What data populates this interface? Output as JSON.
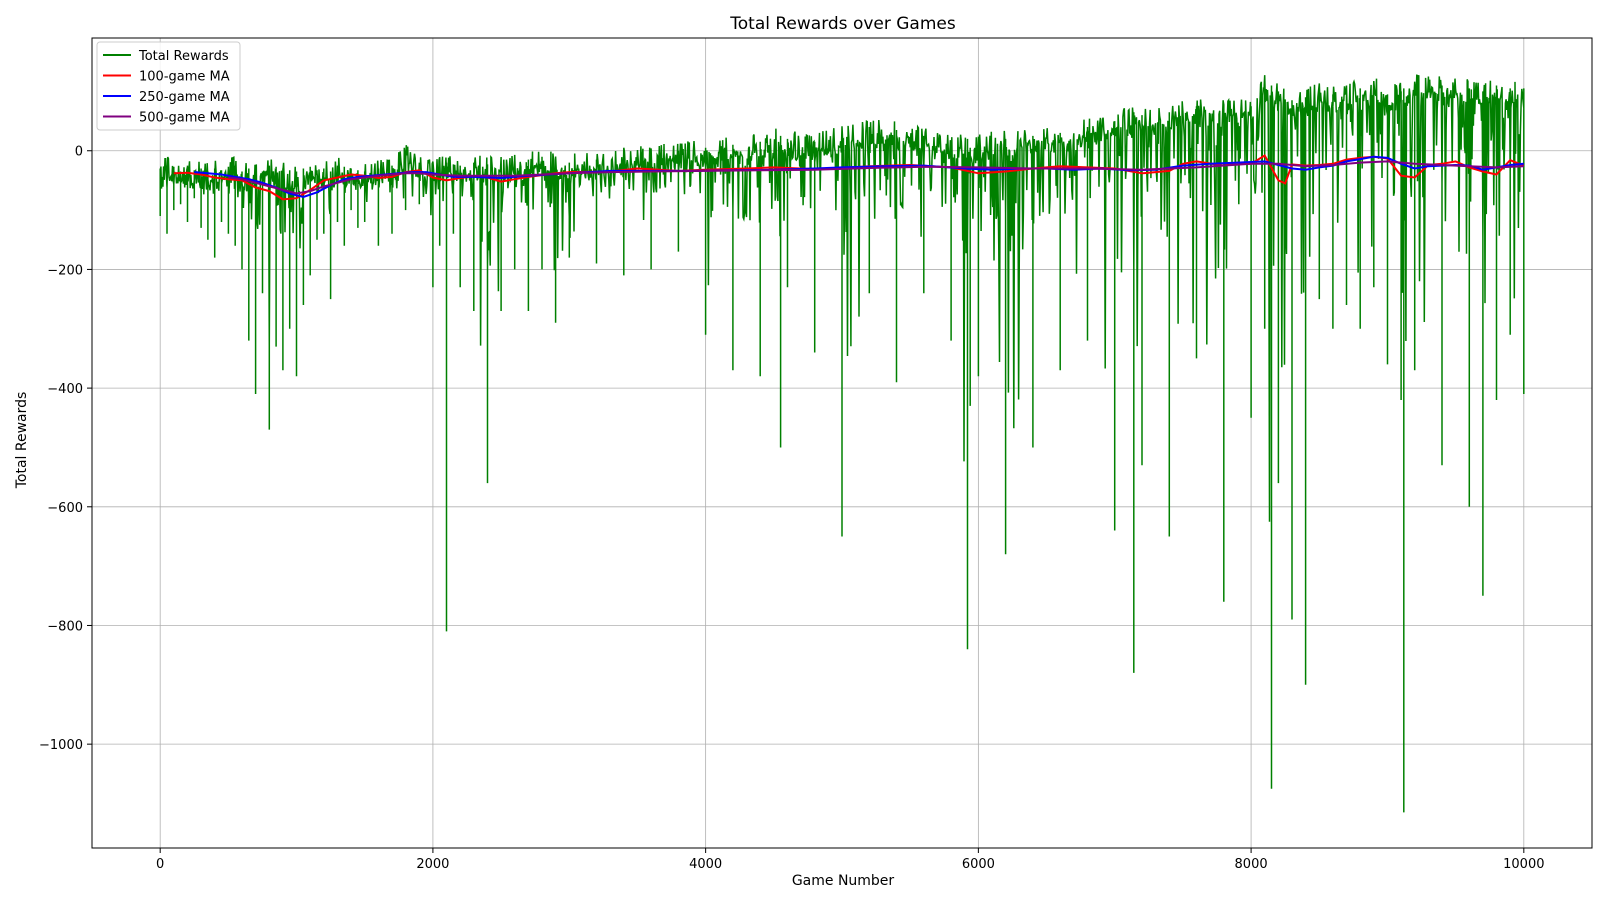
{
  "chart_data": {
    "type": "line",
    "title": "Total Rewards over Games",
    "xlabel": "Game Number",
    "ylabel": "Total Rewards",
    "xlim": [
      -500,
      10500
    ],
    "ylim": [
      -1175,
      190
    ],
    "xticks": [
      0,
      2000,
      4000,
      6000,
      8000,
      10000
    ],
    "yticks": [
      -1000,
      -800,
      -600,
      -400,
      -200,
      0
    ],
    "grid": true,
    "legend_position": "top-left",
    "series": [
      {
        "name": "Total Rewards",
        "color": "#008000",
        "note_sampling": "approximate envelope, sampled every 50 games",
        "x": [
          0,
          50,
          100,
          150,
          200,
          250,
          300,
          350,
          400,
          450,
          500,
          550,
          600,
          650,
          700,
          750,
          800,
          850,
          900,
          950,
          1000,
          1050,
          1100,
          1150,
          1200,
          1250,
          1300,
          1350,
          1400,
          1450,
          1500,
          1600,
          1700,
          1800,
          1900,
          2000,
          2050,
          2100,
          2150,
          2200,
          2300,
          2400,
          2500,
          2600,
          2700,
          2800,
          2900,
          3000,
          3200,
          3400,
          3600,
          3800,
          4000,
          4200,
          4400,
          4550,
          4600,
          4800,
          5000,
          5200,
          5400,
          5600,
          5800,
          5920,
          5940,
          6000,
          6200,
          6400,
          6600,
          6800,
          7000,
          7140,
          7200,
          7400,
          7600,
          7800,
          8000,
          8100,
          8150,
          8200,
          8300,
          8400,
          8500,
          8600,
          8700,
          8800,
          8900,
          9000,
          9100,
          9120,
          9200,
          9400,
          9600,
          9700,
          9800,
          9900,
          10000
        ],
        "min": [
          -110,
          -140,
          -100,
          -90,
          -120,
          -80,
          -130,
          -150,
          -180,
          -120,
          -140,
          -160,
          -200,
          -320,
          -410,
          -240,
          -470,
          -330,
          -370,
          -300,
          -380,
          -260,
          -210,
          -150,
          -140,
          -250,
          -120,
          -160,
          -100,
          -130,
          -120,
          -160,
          -140,
          -100,
          -90,
          -230,
          -160,
          -810,
          -140,
          -230,
          -270,
          -560,
          -270,
          -200,
          -270,
          -200,
          -290,
          -180,
          -190,
          -210,
          -200,
          -170,
          -310,
          -370,
          -380,
          -500,
          -230,
          -340,
          -650,
          -240,
          -390,
          -240,
          -320,
          -840,
          -430,
          -380,
          -680,
          -500,
          -370,
          -320,
          -640,
          -880,
          -530,
          -650,
          -350,
          -760,
          -450,
          -300,
          -1075,
          -560,
          -790,
          -900,
          -250,
          -300,
          -260,
          -300,
          -230,
          -360,
          -420,
          -1115,
          -370,
          -530,
          -600,
          -750,
          -420,
          -310,
          -410
        ],
        "max": [
          -15,
          -10,
          -12,
          -20,
          -10,
          -18,
          -15,
          -20,
          -15,
          -18,
          -12,
          -10,
          -20,
          -15,
          -18,
          -20,
          -10,
          -12,
          -15,
          -18,
          -20,
          -15,
          -12,
          -18,
          -15,
          -20,
          -10,
          -12,
          -15,
          -18,
          -20,
          -15,
          -10,
          15,
          -5,
          -15,
          -10,
          -5,
          -8,
          -10,
          -5,
          -8,
          -10,
          -5,
          0,
          5,
          -3,
          -5,
          0,
          5,
          10,
          15,
          20,
          25,
          30,
          40,
          35,
          30,
          45,
          55,
          50,
          40,
          25,
          35,
          20,
          30,
          35,
          40,
          45,
          55,
          65,
          80,
          75,
          80,
          90,
          85,
          90,
          130,
          125,
          115,
          100,
          105,
          115,
          110,
          115,
          120,
          125,
          110,
          115,
          120,
          130,
          125,
          120,
          115,
          125,
          120,
          120
        ]
      },
      {
        "name": "100-game MA",
        "color": "#ff0000",
        "x": [
          100,
          200,
          300,
          400,
          500,
          600,
          700,
          800,
          900,
          1000,
          1100,
          1200,
          1300,
          1400,
          1500,
          1600,
          1700,
          1800,
          1900,
          2000,
          2100,
          2200,
          2300,
          2400,
          2500,
          2600,
          2700,
          2800,
          2900,
          3000,
          3300,
          3500,
          3800,
          4000,
          4300,
          4500,
          4800,
          5000,
          5200,
          5500,
          5800,
          6000,
          6200,
          6400,
          6600,
          6800,
          7000,
          7200,
          7400,
          7500,
          7600,
          7800,
          7900,
          8000,
          8100,
          8200,
          8250,
          8300,
          8400,
          8500,
          8600,
          8700,
          8800,
          8900,
          9000,
          9100,
          9200,
          9300,
          9400,
          9500,
          9600,
          9700,
          9800,
          9900,
          10000
        ],
        "y": [
          -38,
          -37,
          -40,
          -45,
          -48,
          -50,
          -62,
          -68,
          -82,
          -80,
          -66,
          -50,
          -45,
          -40,
          -42,
          -46,
          -44,
          -36,
          -33,
          -45,
          -50,
          -46,
          -43,
          -45,
          -52,
          -48,
          -44,
          -41,
          -38,
          -36,
          -35,
          -30,
          -34,
          -32,
          -30,
          -28,
          -31,
          -29,
          -26,
          -24,
          -28,
          -38,
          -35,
          -30,
          -26,
          -28,
          -30,
          -38,
          -34,
          -22,
          -18,
          -25,
          -20,
          -22,
          -8,
          -50,
          -55,
          -23,
          -25,
          -24,
          -22,
          -15,
          -12,
          -10,
          -13,
          -42,
          -45,
          -24,
          -22,
          -18,
          -28,
          -35,
          -40,
          -16,
          -25
        ]
      },
      {
        "name": "250-game MA",
        "color": "#0000ff",
        "x": [
          250,
          350,
          450,
          550,
          650,
          750,
          850,
          950,
          1050,
          1150,
          1250,
          1350,
          1450,
          1550,
          1650,
          1750,
          1850,
          1950,
          2050,
          2150,
          2300,
          2500,
          2700,
          3000,
          3300,
          3600,
          3900,
          4200,
          4500,
          4800,
          5000,
          5300,
          5600,
          5900,
          6100,
          6300,
          6500,
          6700,
          6900,
          7100,
          7300,
          7500,
          7700,
          7900,
          8100,
          8200,
          8300,
          8400,
          8500,
          8600,
          8700,
          8800,
          8900,
          9000,
          9100,
          9200,
          9300,
          9400,
          9500,
          9600,
          9700,
          9800,
          9900,
          10000
        ],
        "y": [
          -36,
          -38,
          -40,
          -44,
          -48,
          -54,
          -62,
          -72,
          -78,
          -70,
          -58,
          -48,
          -44,
          -42,
          -40,
          -38,
          -36,
          -36,
          -40,
          -44,
          -44,
          -46,
          -42,
          -38,
          -34,
          -34,
          -34,
          -33,
          -32,
          -30,
          -28,
          -26,
          -25,
          -30,
          -32,
          -30,
          -30,
          -32,
          -30,
          -33,
          -32,
          -25,
          -22,
          -20,
          -18,
          -24,
          -30,
          -32,
          -28,
          -25,
          -18,
          -14,
          -10,
          -12,
          -22,
          -30,
          -26,
          -25,
          -24,
          -25,
          -32,
          -28,
          -24,
          -22
        ]
      },
      {
        "name": "500-game MA",
        "color": "#800080",
        "x": [
          500,
          600,
          700,
          800,
          900,
          1000,
          1100,
          1200,
          1300,
          1400,
          1500,
          1600,
          1700,
          1800,
          1900,
          2000,
          2200,
          2400,
          2600,
          2800,
          3000,
          3300,
          3600,
          4000,
          4400,
          4800,
          5200,
          5600,
          6000,
          6400,
          6800,
          7200,
          7600,
          8000,
          8200,
          8400,
          8600,
          8800,
          9000,
          9200,
          9400,
          9600,
          9800,
          10000
        ],
        "y": [
          -45,
          -48,
          -54,
          -60,
          -66,
          -72,
          -68,
          -60,
          -54,
          -48,
          -45,
          -42,
          -40,
          -38,
          -38,
          -40,
          -42,
          -42,
          -42,
          -40,
          -38,
          -36,
          -35,
          -34,
          -33,
          -32,
          -29,
          -27,
          -28,
          -30,
          -30,
          -32,
          -28,
          -22,
          -22,
          -26,
          -24,
          -20,
          -18,
          -22,
          -24,
          -26,
          -28,
          -26
        ]
      }
    ]
  }
}
